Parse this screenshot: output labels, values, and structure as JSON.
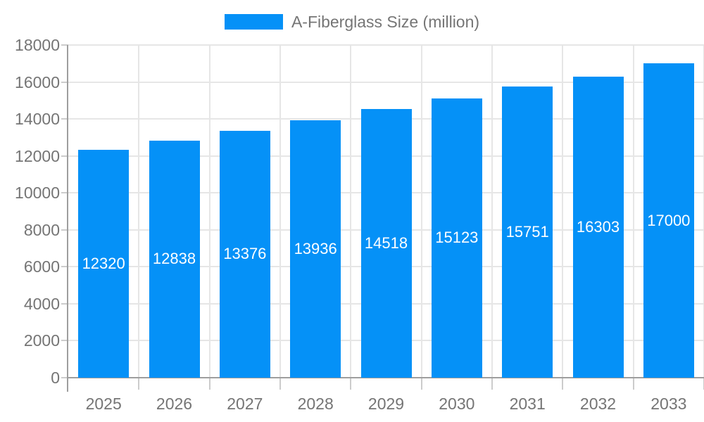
{
  "legend": {
    "label": "A-Fiberglass Size (million)"
  },
  "chart_data": {
    "type": "bar",
    "title": "",
    "xlabel": "",
    "ylabel": "",
    "series_name": "A-Fiberglass Size (million)",
    "categories": [
      "2025",
      "2026",
      "2027",
      "2028",
      "2029",
      "2030",
      "2031",
      "2032",
      "2033"
    ],
    "values": [
      12320,
      12838,
      13376,
      13936,
      14518,
      15123,
      15751,
      16303,
      17000
    ],
    "value_labels": [
      "12320",
      "12838",
      "13376",
      "13936",
      "14518",
      "15123",
      "15751",
      "16303",
      "17000"
    ],
    "ylim": [
      0,
      18000
    ],
    "ytick_step": 2000,
    "ytick_labels": [
      "0",
      "2000",
      "4000",
      "6000",
      "8000",
      "10000",
      "12000",
      "14000",
      "16000",
      "18000"
    ],
    "grid": true,
    "legend_position": "top-center",
    "colors": {
      "bar": "#0591F7",
      "bar_value_text": "#ffffff",
      "axis_line": "#9e9e9e",
      "gridline": "#e6e6e6",
      "tick": "#cccccc",
      "axis_text": "#757575",
      "background": "#ffffff"
    }
  }
}
